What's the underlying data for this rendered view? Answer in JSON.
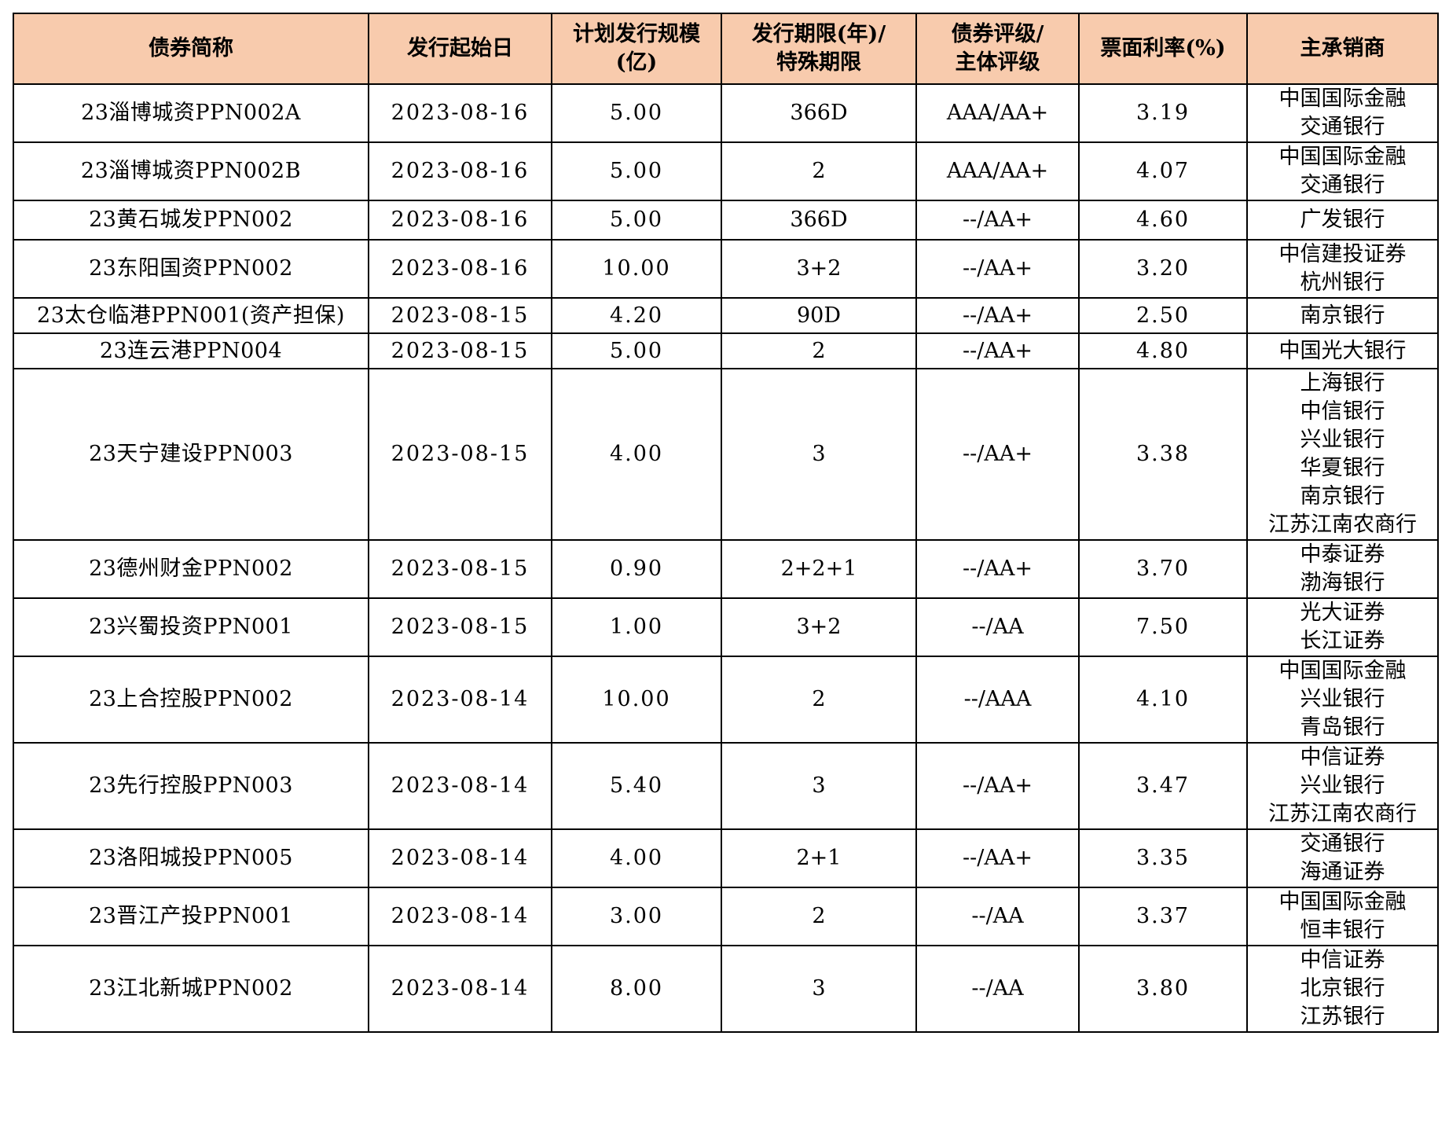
{
  "table": {
    "headers": [
      [
        "债券简称"
      ],
      [
        "发行起始日"
      ],
      [
        "计划发行规模",
        "(亿)"
      ],
      [
        "发行期限(年)/",
        "特殊期限"
      ],
      [
        "债券评级/",
        "主体评级"
      ],
      [
        "票面利率(%)"
      ],
      [
        "主承销商"
      ]
    ],
    "rows": [
      {
        "name": "23淄博城资PPN002A",
        "date": "2023-08-16",
        "size": "5.00",
        "term": "366D",
        "rating": "AAA/AA+",
        "rate": "3.19",
        "underwriters": [
          "中国国际金融",
          "交通银行"
        ]
      },
      {
        "name": "23淄博城资PPN002B",
        "date": "2023-08-16",
        "size": "5.00",
        "term": "2",
        "rating": "AAA/AA+",
        "rate": "4.07",
        "underwriters": [
          "中国国际金融",
          "交通银行"
        ]
      },
      {
        "name": "23黄石城发PPN002",
        "date": "2023-08-16",
        "size": "5.00",
        "term": "366D",
        "rating": "--/AA+",
        "rate": "4.60",
        "underwriters": [
          "广发银行"
        ]
      },
      {
        "name": "23东阳国资PPN002",
        "date": "2023-08-16",
        "size": "10.00",
        "term": "3+2",
        "rating": "--/AA+",
        "rate": "3.20",
        "underwriters": [
          "中信建投证券",
          "杭州银行"
        ]
      },
      {
        "name": "23太仓临港PPN001(资产担保)",
        "date": "2023-08-15",
        "size": "4.20",
        "term": "90D",
        "rating": "--/AA+",
        "rate": "2.50",
        "underwriters": [
          "南京银行"
        ]
      },
      {
        "name": "23连云港PPN004",
        "date": "2023-08-15",
        "size": "5.00",
        "term": "2",
        "rating": "--/AA+",
        "rate": "4.80",
        "underwriters": [
          "中国光大银行"
        ]
      },
      {
        "name": "23天宁建设PPN003",
        "date": "2023-08-15",
        "size": "4.00",
        "term": "3",
        "rating": "--/AA+",
        "rate": "3.38",
        "underwriters": [
          "上海银行",
          "中信银行",
          "兴业银行",
          "华夏银行",
          "南京银行",
          "江苏江南农商行"
        ]
      },
      {
        "name": "23德州财金PPN002",
        "date": "2023-08-15",
        "size": "0.90",
        "term": "2+2+1",
        "rating": "--/AA+",
        "rate": "3.70",
        "underwriters": [
          "中泰证券",
          "渤海银行"
        ]
      },
      {
        "name": "23兴蜀投资PPN001",
        "date": "2023-08-15",
        "size": "1.00",
        "term": "3+2",
        "rating": "--/AA",
        "rate": "7.50",
        "underwriters": [
          "光大证券",
          "长江证券"
        ]
      },
      {
        "name": "23上合控股PPN002",
        "date": "2023-08-14",
        "size": "10.00",
        "term": "2",
        "rating": "--/AAA",
        "rate": "4.10",
        "underwriters": [
          "中国国际金融",
          "兴业银行",
          "青岛银行"
        ]
      },
      {
        "name": "23先行控股PPN003",
        "date": "2023-08-14",
        "size": "5.40",
        "term": "3",
        "rating": "--/AA+",
        "rate": "3.47",
        "underwriters": [
          "中信证券",
          "兴业银行",
          "江苏江南农商行"
        ]
      },
      {
        "name": "23洛阳城投PPN005",
        "date": "2023-08-14",
        "size": "4.00",
        "term": "2+1",
        "rating": "--/AA+",
        "rate": "3.35",
        "underwriters": [
          "交通银行",
          "海通证券"
        ]
      },
      {
        "name": "23晋江产投PPN001",
        "date": "2023-08-14",
        "size": "3.00",
        "term": "2",
        "rating": "--/AA",
        "rate": "3.37",
        "underwriters": [
          "中国国际金融",
          "恒丰银行"
        ]
      },
      {
        "name": "23江北新城PPN002",
        "date": "2023-08-14",
        "size": "8.00",
        "term": "3",
        "rating": "--/AA",
        "rate": "3.80",
        "underwriters": [
          "中信证券",
          "北京银行",
          "江苏银行"
        ]
      }
    ]
  }
}
